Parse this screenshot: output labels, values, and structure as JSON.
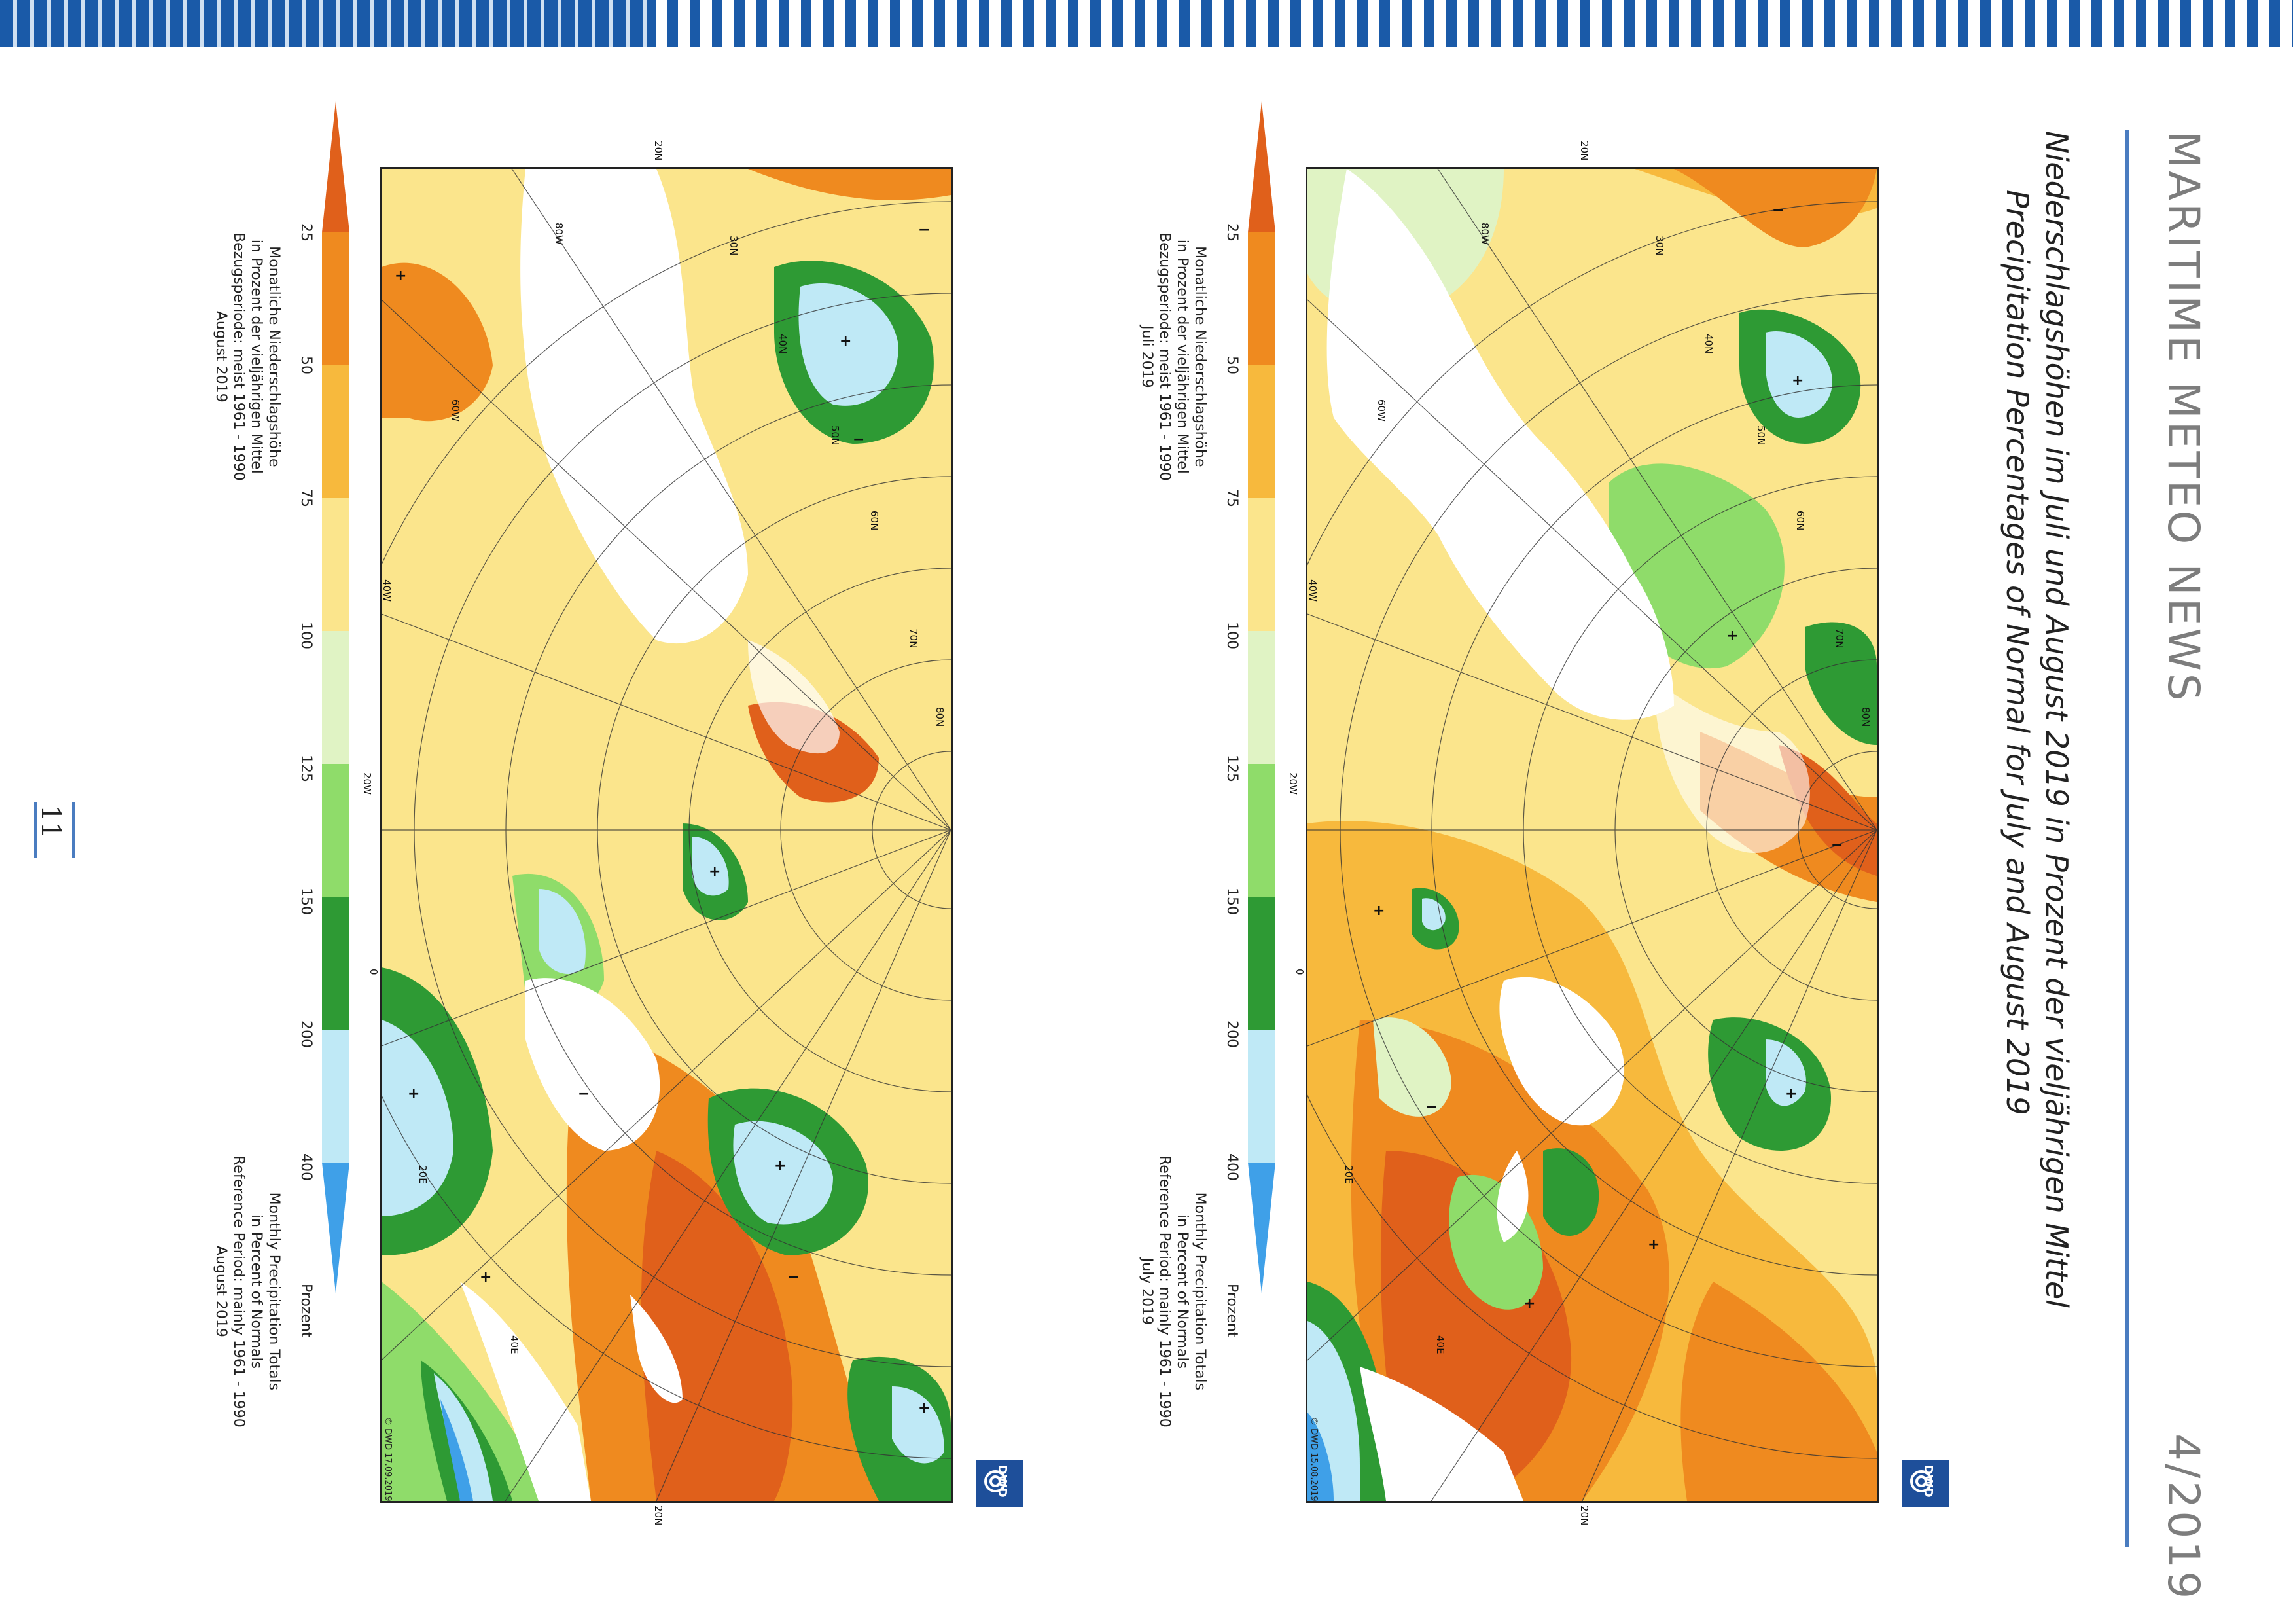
{
  "header": {
    "magazine_title": "MARITIME METEO NEWS",
    "issue": "4/2019",
    "title_de": "Niederschlagshöhen im Juli und August 2019 in Prozent der vieljährigen Mittel",
    "title_en": "Precipitation Percentages of Normal for July and August 2019",
    "page_number": "11"
  },
  "legend": {
    "ticks": [
      "25",
      "50",
      "75",
      "100",
      "125",
      "150",
      "200",
      "400"
    ],
    "unit": "Prozent",
    "colors": [
      "#e0601b",
      "#ef8a1f",
      "#f7b93d",
      "#fbe58c",
      "#e0f3c4",
      "#8fdc6a",
      "#2e9a34",
      "#bfe9f6",
      "#3fa0e8"
    ]
  },
  "maps": [
    {
      "id": "july",
      "caption_de": "Monatliche Niederschlagshöhe\nin Prozent der vieljährigen Mittel\nBezugsperiode: meist 1961 - 1990\nJuli 2019",
      "caption_en": "Monthly Precipitation Totals\nin Percent of Normals\nReference Period: mainly 1961 - 1990\nJuly 2019",
      "copyright": "© DWD 15.08.2019",
      "logo": "DWD"
    },
    {
      "id": "august",
      "caption_de": "Monatliche Niederschlagshöhe\nin Prozent der vieljährigen Mittel\nBezugsperiode: meist 1961 - 1990\nAugust 2019",
      "caption_en": "Monthly Precipitation Totals\nin Percent of Normals\nReference Period: mainly 1961 - 1990\nAugust 2019",
      "copyright": "© DWD 17.09.2019",
      "logo": "DWD"
    }
  ],
  "grid_labels": {
    "top": "20N",
    "bottom": "20N",
    "meridians": [
      "80W",
      "60W",
      "40W",
      "20W",
      "0",
      "20E",
      "40E"
    ],
    "parallels": [
      "30N",
      "40N",
      "50N",
      "60N",
      "70N",
      "80N"
    ]
  }
}
